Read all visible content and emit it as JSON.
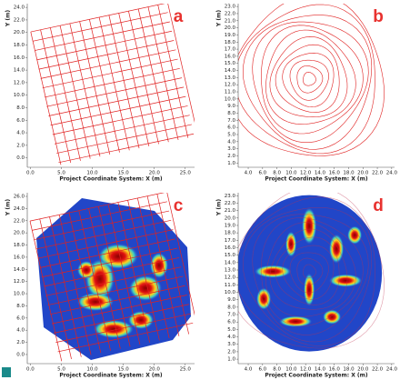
{
  "panels": [
    {
      "label": "a",
      "x_label": "Project Coordinate System: X (m)",
      "y_label": "Y (m)",
      "xlim": [
        -0.5,
        26.5
      ],
      "ylim": [
        -1.5,
        24.6
      ],
      "xticks": [
        {
          "value": 0,
          "label": "0.0"
        },
        {
          "value": 5,
          "label": "5.0"
        },
        {
          "value": 10,
          "label": "10.0"
        },
        {
          "value": 15,
          "label": "15.0"
        },
        {
          "value": 20,
          "label": "20.0"
        },
        {
          "value": 25,
          "label": "25.0"
        }
      ],
      "yticks": [
        {
          "value": 0,
          "label": "0.0"
        },
        {
          "value": 2,
          "label": "2.0"
        },
        {
          "value": 4,
          "label": "4.0"
        },
        {
          "value": 6,
          "label": "6.0"
        },
        {
          "value": 8,
          "label": "8.0"
        },
        {
          "value": 10,
          "label": "10.0"
        },
        {
          "value": 12,
          "label": "12.0"
        },
        {
          "value": 14,
          "label": "14.0"
        },
        {
          "value": 16,
          "label": "16.0"
        },
        {
          "value": 18,
          "label": "18.0"
        },
        {
          "value": 20,
          "label": "20.0"
        },
        {
          "value": 22,
          "label": "22.0"
        },
        {
          "value": 24,
          "label": "24.0"
        }
      ]
    },
    {
      "label": "b",
      "x_label": "Project Coordinate System: X (m)",
      "y_label": "Y (m)",
      "xlim": [
        2.6,
        24.4
      ],
      "ylim": [
        0.4,
        23.4
      ],
      "xticks": [
        {
          "value": 4,
          "label": "4.0"
        },
        {
          "value": 6,
          "label": "6.0"
        },
        {
          "value": 8,
          "label": "8.0"
        },
        {
          "value": 10,
          "label": "10.0"
        },
        {
          "value": 12,
          "label": "12.0"
        },
        {
          "value": 14,
          "label": "14.0"
        },
        {
          "value": 16,
          "label": "16.0"
        },
        {
          "value": 18,
          "label": "18.0"
        },
        {
          "value": 20,
          "label": "20.0"
        },
        {
          "value": 22,
          "label": "22.0"
        },
        {
          "value": 24,
          "label": "24.0"
        }
      ],
      "yticks": [
        {
          "value": 1,
          "label": "1.0"
        },
        {
          "value": 2,
          "label": "2.0"
        },
        {
          "value": 3,
          "label": "3.0"
        },
        {
          "value": 4,
          "label": "4.0"
        },
        {
          "value": 5,
          "label": "5.0"
        },
        {
          "value": 6,
          "label": "6.0"
        },
        {
          "value": 7,
          "label": "7.0"
        },
        {
          "value": 8,
          "label": "8.0"
        },
        {
          "value": 9,
          "label": "9.0"
        },
        {
          "value": 10,
          "label": "10.0"
        },
        {
          "value": 11,
          "label": "11.0"
        },
        {
          "value": 12,
          "label": "12.0"
        },
        {
          "value": 13,
          "label": "13.0"
        },
        {
          "value": 14,
          "label": "14.0"
        },
        {
          "value": 15,
          "label": "15.0"
        },
        {
          "value": 16,
          "label": "16.0"
        },
        {
          "value": 17,
          "label": "17.0"
        },
        {
          "value": 18,
          "label": "18.0"
        },
        {
          "value": 19,
          "label": "19.0"
        },
        {
          "value": 20,
          "label": "20.0"
        },
        {
          "value": 21,
          "label": "21.0"
        },
        {
          "value": 22,
          "label": "22.0"
        },
        {
          "value": 23,
          "label": "23.0"
        }
      ]
    },
    {
      "label": "c",
      "x_label": "Project Coordinate System: X (m)",
      "y_label": "Y (m)",
      "xlim": [
        -0.5,
        26.5
      ],
      "ylim": [
        -1.5,
        26.6
      ],
      "xticks": [
        {
          "value": 0,
          "label": "0.0"
        },
        {
          "value": 5,
          "label": "5.0"
        },
        {
          "value": 10,
          "label": "10.0"
        },
        {
          "value": 15,
          "label": "15.0"
        },
        {
          "value": 20,
          "label": "20.0"
        },
        {
          "value": 25,
          "label": "25.0"
        }
      ],
      "yticks": [
        {
          "value": 0,
          "label": "0.0"
        },
        {
          "value": 2,
          "label": "2.0"
        },
        {
          "value": 4,
          "label": "4.0"
        },
        {
          "value": 6,
          "label": "6.0"
        },
        {
          "value": 8,
          "label": "8.0"
        },
        {
          "value": 10,
          "label": "10.0"
        },
        {
          "value": 12,
          "label": "12.0"
        },
        {
          "value": 14,
          "label": "14.0"
        },
        {
          "value": 16,
          "label": "16.0"
        },
        {
          "value": 18,
          "label": "18.0"
        },
        {
          "value": 20,
          "label": "20.0"
        },
        {
          "value": 22,
          "label": "22.0"
        },
        {
          "value": 24,
          "label": "24.0"
        },
        {
          "value": 26,
          "label": "26.0"
        }
      ]
    },
    {
      "label": "d",
      "x_label": "Project Coordinate System: X (m)",
      "y_label": "Y (m)",
      "xlim": [
        2.6,
        24.4
      ],
      "ylim": [
        0.4,
        23.4
      ],
      "xticks": [
        {
          "value": 4,
          "label": "4.0"
        },
        {
          "value": 6,
          "label": "6.0"
        },
        {
          "value": 8,
          "label": "8.0"
        },
        {
          "value": 10,
          "label": "10.0"
        },
        {
          "value": 12,
          "label": "12.0"
        },
        {
          "value": 14,
          "label": "14.0"
        },
        {
          "value": 16,
          "label": "16.0"
        },
        {
          "value": 18,
          "label": "18.0"
        },
        {
          "value": 20,
          "label": "20.0"
        },
        {
          "value": 22,
          "label": "22.0"
        },
        {
          "value": 24,
          "label": "24.0"
        }
      ],
      "yticks": [
        {
          "value": 1,
          "label": "1.0"
        },
        {
          "value": 2,
          "label": "2.0"
        },
        {
          "value": 3,
          "label": "3.0"
        },
        {
          "value": 4,
          "label": "4.0"
        },
        {
          "value": 5,
          "label": "5.0"
        },
        {
          "value": 6,
          "label": "6.0"
        },
        {
          "value": 7,
          "label": "7.0"
        },
        {
          "value": 8,
          "label": "8.0"
        },
        {
          "value": 9,
          "label": "9.0"
        },
        {
          "value": 10,
          "label": "10.0"
        },
        {
          "value": 11,
          "label": "11.0"
        },
        {
          "value": 12,
          "label": "12.0"
        },
        {
          "value": 13,
          "label": "13.0"
        },
        {
          "value": 14,
          "label": "14.0"
        },
        {
          "value": 15,
          "label": "15.0"
        },
        {
          "value": 16,
          "label": "16.0"
        },
        {
          "value": 17,
          "label": "17.0"
        },
        {
          "value": 18,
          "label": "18.0"
        },
        {
          "value": 19,
          "label": "19.0"
        },
        {
          "value": 20,
          "label": "20.0"
        },
        {
          "value": 21,
          "label": "21.0"
        },
        {
          "value": 22,
          "label": "22.0"
        },
        {
          "value": 23,
          "label": "23.0"
        }
      ]
    }
  ]
}
